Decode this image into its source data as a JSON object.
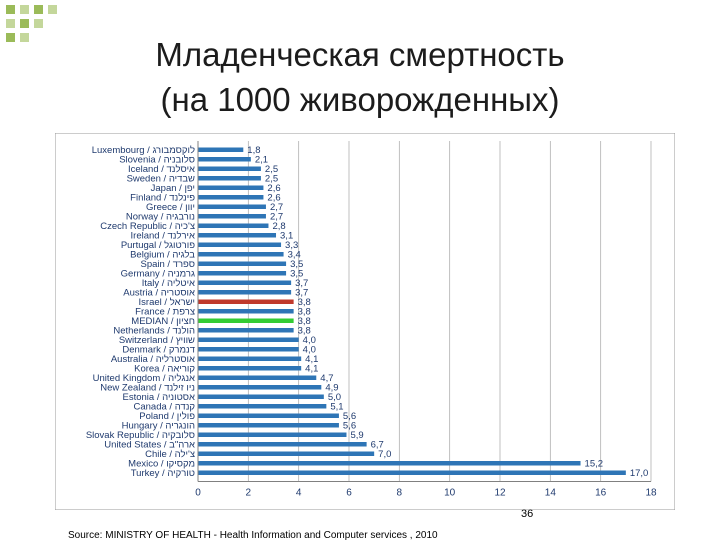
{
  "slide": {
    "title_line1": "Младенческая смертность",
    "title_line2": "(на 1000 живорожденных)",
    "source": "Source: MINISTRY OF HEALTH - Health Information and Computer services , 2010",
    "page_number": "36"
  },
  "colors": {
    "deco_green": "#9bbb59",
    "bar_default": "#2e75b6",
    "bar_israel": "#c0392b",
    "bar_median": "#33cc33",
    "grid": "#b0b0b0",
    "text": "#1f3a6e"
  },
  "chart_data": {
    "type": "bar",
    "orientation": "horizontal",
    "title": "Младенческая смертность (на 1000 живорожденных)",
    "categories": [
      "Luxembourg / לוקסמבורג",
      "Slovenia / סלובניה",
      "Iceland / איסלנד",
      "Sweden / שבדיה",
      "Japan / יפן",
      "Finland / פינלנד",
      "Greece / יוון",
      "Norway / נורבגיה",
      "Czech Republic / צ'כיה",
      "Ireland / אירלנד",
      "Purtugal / פורטוגל",
      "Belgium / בלגיה",
      "Spain / ספרד",
      "Germany / גרמניה",
      "Italy / איטליה",
      "Austria / אוסטריה",
      "Israel / ישראל",
      "France / צרפת",
      "MEDIAN / חציון",
      "Netherlands / הולנד",
      "Switzerland / שוויץ",
      "Denmark / דנמרק",
      "Australia / אוסטרליה",
      "Korea / קוריאה",
      "United Kingdom / אנגליה",
      "New Zealand / ניו זילנד",
      "Estonia / אסטוניה",
      "Canada / קנדה",
      "Poland / פולין",
      "Hungary / הונגריה",
      "Slovak Republic / סלובקיה",
      "United States / ארה\"ב",
      "Chile / צ'ילה",
      "Mexico / מקסיקו",
      "Turkey / טורקיה"
    ],
    "value_labels": [
      "1,8",
      "2,1",
      "2,5",
      "2,5",
      "2,6",
      "2,6",
      "2,7",
      "2,7",
      "2,8",
      "3,1",
      "3,3",
      "3,4",
      "3,5",
      "3,5",
      "3,7",
      "3,7",
      "3,8",
      "3,8",
      "3,8",
      "3,8",
      "4,0",
      "4,0",
      "4,1",
      "4,1",
      "4,7",
      "4,9",
      "5,0",
      "5,1",
      "5,6",
      "5,6",
      "5,9",
      "6,7",
      "7,0",
      "15,2",
      "17,0"
    ],
    "values": [
      1.8,
      2.1,
      2.5,
      2.5,
      2.6,
      2.6,
      2.7,
      2.7,
      2.8,
      3.1,
      3.3,
      3.4,
      3.5,
      3.5,
      3.7,
      3.7,
      3.8,
      3.8,
      3.8,
      3.8,
      4.0,
      4.0,
      4.1,
      4.1,
      4.7,
      4.9,
      5.0,
      5.1,
      5.6,
      5.6,
      5.9,
      6.7,
      7.0,
      15.2,
      17.0
    ],
    "highlight": {
      "Israel / ישראל": "bar_israel",
      "MEDIAN / חציון": "bar_median"
    },
    "x_ticks": [
      "0",
      "2",
      "4",
      "6",
      "8",
      "10",
      "12",
      "14",
      "16",
      "18"
    ],
    "xlim": [
      0,
      18
    ],
    "grid": true,
    "legend": "none"
  }
}
